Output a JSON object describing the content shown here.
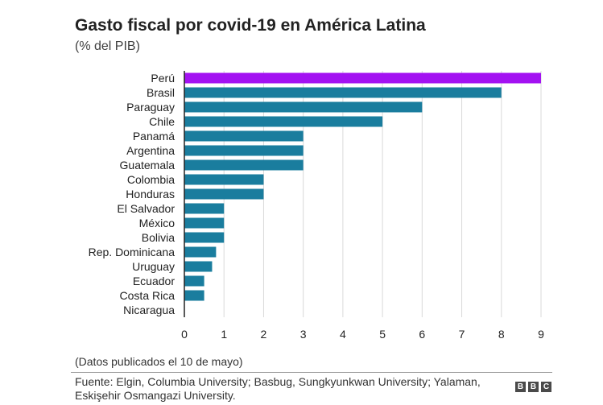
{
  "title": "Gasto fiscal por covid-19 en América Latina",
  "subtitle": "(% del PIB)",
  "note": "(Datos publicados el 10 de mayo)",
  "source": "Fuente: Elgin, Columbia University; Basbug, Sungkyunkwan University; Yalaman, Eskişehir Osmangazi University.",
  "logo": "BBC",
  "colors": {
    "highlight": "#a312f2",
    "bar": "#1a7d9e",
    "grid": "#d9d9d9",
    "axis": "#222222"
  },
  "chart_data": {
    "type": "bar",
    "orientation": "horizontal",
    "title": "Gasto fiscal por covid-19 en América Latina",
    "subtitle": "(% del PIB)",
    "categories": [
      "Perú",
      "Brasil",
      "Paraguay",
      "Chile",
      "Panamá",
      "Argentina",
      "Guatemala",
      "Colombia",
      "Honduras",
      "El Salvador",
      "México",
      "Bolivia",
      "Rep. Dominicana",
      "Uruguay",
      "Ecuador",
      "Costa Rica",
      "Nicaragua"
    ],
    "values": [
      9,
      8,
      6,
      5,
      3,
      3,
      3,
      2,
      2,
      1,
      1,
      1,
      0.8,
      0.7,
      0.5,
      0.5,
      0
    ],
    "highlighted": [
      "Perú"
    ],
    "xticks": [
      0,
      1,
      2,
      3,
      4,
      5,
      6,
      7,
      8,
      9
    ],
    "xlim": [
      0,
      9
    ],
    "grid": true
  }
}
